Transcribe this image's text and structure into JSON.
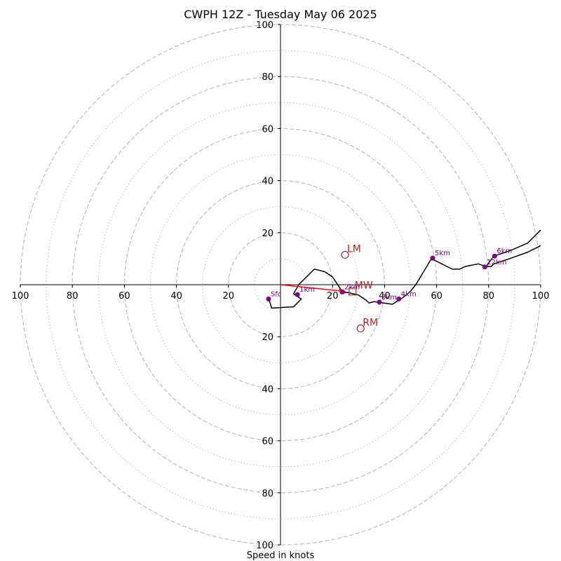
{
  "chart_data": {
    "type": "scatter",
    "title": "CWPH 12Z - Tuesday May 06 2025",
    "xlabel": "Speed in knots",
    "ylabel": "",
    "range": [
      -100,
      100
    ],
    "ring_radii_dashed": [
      20,
      40,
      60,
      80,
      100
    ],
    "ring_radii_dotted": [
      10,
      30,
      50,
      70,
      90
    ],
    "x_ticks": [
      "100",
      "80",
      "60",
      "40",
      "20",
      "20",
      "40",
      "60",
      "80",
      "100"
    ],
    "x_tick_values": [
      -100,
      -80,
      -60,
      -40,
      -20,
      20,
      40,
      60,
      80,
      100
    ],
    "y_ticks": [
      "100",
      "80",
      "60",
      "40",
      "20",
      "20",
      "40",
      "60",
      "80",
      "100"
    ],
    "y_tick_values": [
      100,
      80,
      60,
      40,
      20,
      -20,
      -40,
      -60,
      -80,
      -100
    ],
    "grid": true,
    "hodograph": {
      "x": [
        -4.6,
        -3.4,
        5,
        8,
        5,
        7,
        13,
        17,
        20,
        23,
        24,
        26,
        30,
        33,
        34,
        36,
        43,
        47,
        50,
        52,
        55,
        58,
        62,
        66,
        69,
        71,
        76,
        79,
        82,
        88,
        95,
        100
      ],
      "y": [
        -5,
        -9,
        -8.5,
        -5.5,
        -3.5,
        0,
        6,
        5,
        3,
        -1.5,
        -3,
        -3,
        -4,
        -6,
        -7,
        -6.5,
        -7.5,
        -5,
        -2.5,
        0,
        5,
        10,
        8,
        6,
        6,
        7,
        8,
        7,
        11,
        13,
        16,
        21
      ]
    },
    "hodograph_upper": {
      "x": [
        79,
        81,
        82,
        88,
        95,
        100
      ],
      "y": [
        7,
        7,
        8,
        10,
        12.5,
        15
      ]
    },
    "height_points": [
      {
        "label": "Sfc",
        "x": -4.6,
        "y": -5.5
      },
      {
        "label": "1km",
        "x": 6.5,
        "y": -3.8
      },
      {
        "label": "2km",
        "x": 23.8,
        "y": -2.8
      },
      {
        "label": "3km",
        "x": 38,
        "y": -6.7
      },
      {
        "label": "4km",
        "x": 45.5,
        "y": -5.5
      },
      {
        "label": "5km",
        "x": 58.5,
        "y": 10.2
      },
      {
        "label": "6km",
        "x": 82.3,
        "y": 11
      },
      {
        "label": "12km",
        "x": 78.5,
        "y": 6.8
      }
    ],
    "motion_vectors": [
      {
        "label": "LM",
        "x": 24.8,
        "y": 11.5,
        "marker": "circle"
      },
      {
        "label": "RM",
        "x": 30.8,
        "y": -16.8,
        "marker": "circle"
      },
      {
        "label": "MW",
        "x": 27.7,
        "y": -2.6,
        "marker": "square"
      }
    ],
    "shear_vector": {
      "x0": 0,
      "y0": 0,
      "x1": 25,
      "y1": -2.6
    },
    "colors": {
      "hodograph": "#000000",
      "height_points": "#800080",
      "motion": "#b22222",
      "shear": "#ff0000",
      "ring": "#bdbdbd"
    }
  }
}
